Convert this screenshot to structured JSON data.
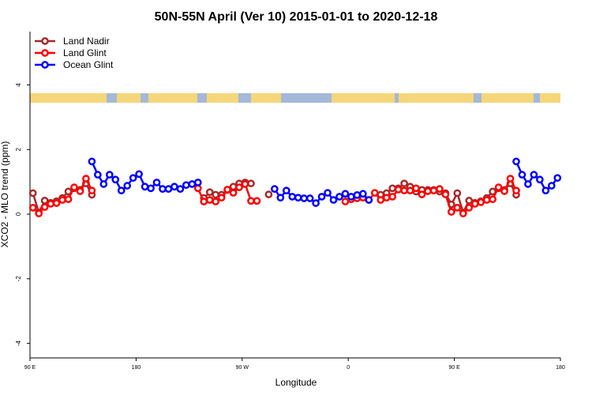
{
  "chart_data": {
    "type": "line",
    "title": "50N-55N April (Ver 10)   2015-01-01 to 2020-12-18",
    "x_label": "Longitude",
    "y_label": "XCO2 - MLO trend (ppm)",
    "xlim": [
      90,
      540
    ],
    "ylim": [
      -4.45,
      5.65
    ],
    "xticks": [
      {
        "value": 90,
        "label": "90 E"
      },
      {
        "value": 180,
        "label": "180"
      },
      {
        "value": 270,
        "label": "90 W"
      },
      {
        "value": 360,
        "label": "0"
      },
      {
        "value": 450,
        "label": "90 E"
      },
      {
        "value": 540,
        "label": "180"
      }
    ],
    "yticks": [
      -4,
      -2,
      0,
      2,
      4
    ],
    "legend": "top-left",
    "x": [
      92.5,
      97.5,
      102.5,
      107.5,
      112.5,
      117.5,
      122.5,
      127.5,
      132.5,
      137.5,
      142.5,
      147.5,
      152.5,
      157.5,
      162.5,
      167.5,
      172.5,
      177.5,
      182.5,
      187.5,
      192.5,
      197.5,
      202.5,
      207.5,
      212.5,
      217.5,
      222.5,
      227.5,
      232.5,
      237.5,
      242.5,
      247.5,
      252.5,
      257.5,
      262.5,
      267.5,
      272.5,
      277.5,
      282.5,
      287.5,
      292.5,
      297.5,
      302.5,
      307.5,
      312.5,
      317.5,
      322.5,
      327.5,
      332.5,
      337.5,
      342.5,
      347.5,
      352.5,
      357.5,
      362.5,
      367.5,
      372.5,
      377.5,
      382.5,
      387.5,
      392.5,
      397.5,
      402.5,
      407.5,
      412.5,
      417.5,
      422.5,
      427.5,
      432.5,
      437.5,
      442.5,
      447.5,
      452.5,
      457.5,
      462.5,
      467.5,
      472.5,
      477.5,
      482.5,
      487.5,
      492.5,
      497.5,
      502.5,
      507.5,
      512.5,
      517.5,
      522.5,
      527.5,
      532.5,
      537.5
    ],
    "series": [
      {
        "name": "Land Nadir",
        "color": "#a52a2a",
        "values": [
          0.65,
          0.05,
          0.42,
          0.35,
          0.4,
          0.5,
          0.7,
          0.8,
          0.75,
          0.95,
          0.6,
          null,
          null,
          null,
          null,
          null,
          null,
          null,
          null,
          null,
          null,
          null,
          null,
          null,
          null,
          null,
          null,
          null,
          null,
          0.5,
          0.68,
          0.6,
          0.6,
          0.75,
          0.85,
          0.95,
          0.98,
          0.95,
          null,
          null,
          0.61,
          null,
          null,
          null,
          null,
          null,
          null,
          null,
          null,
          null,
          null,
          null,
          null,
          null,
          null,
          null,
          null,
          null,
          null,
          0.6,
          0.65,
          0.8,
          0.8,
          0.95,
          0.85,
          0.7,
          0.75,
          0.75,
          0.75,
          0.7,
          0.65,
          0.3,
          0.65,
          0.05,
          0.42,
          0.35,
          0.4,
          0.5,
          0.7,
          0.8,
          0.75,
          0.95,
          0.6,
          null,
          null,
          null,
          null,
          null,
          null,
          null
        ]
      },
      {
        "name": "Land Glint",
        "color": "#ff0000",
        "values": [
          0.2,
          0.02,
          0.22,
          0.32,
          0.34,
          0.44,
          0.46,
          0.83,
          0.71,
          1.1,
          0.73,
          null,
          null,
          null,
          null,
          null,
          null,
          null,
          null,
          null,
          null,
          null,
          null,
          null,
          null,
          null,
          null,
          null,
          0.8,
          0.39,
          0.44,
          0.39,
          0.51,
          0.76,
          0.66,
          0.83,
          0.93,
          0.41,
          0.41,
          null,
          null,
          null,
          null,
          null,
          null,
          null,
          null,
          null,
          null,
          null,
          null,
          null,
          null,
          0.39,
          0.46,
          0.49,
          0.51,
          0.44,
          0.66,
          0.44,
          0.51,
          0.54,
          0.76,
          0.73,
          0.73,
          0.8,
          0.61,
          0.71,
          0.73,
          0.78,
          0.61,
          0.07,
          0.2,
          0.02,
          0.2,
          0.32,
          0.37,
          0.44,
          0.46,
          0.83,
          0.71,
          1.1,
          0.73,
          null,
          null,
          null,
          null,
          null,
          null,
          null
        ]
      },
      {
        "name": "Ocean Glint",
        "color": "#0000ff",
        "values": [
          null,
          null,
          null,
          null,
          null,
          null,
          null,
          null,
          null,
          null,
          1.63,
          1.22,
          0.93,
          1.22,
          1.07,
          0.73,
          0.88,
          1.12,
          1.24,
          0.85,
          0.8,
          0.98,
          0.78,
          0.78,
          0.85,
          0.78,
          0.9,
          0.93,
          0.98,
          null,
          null,
          null,
          null,
          null,
          null,
          null,
          null,
          null,
          null,
          null,
          null,
          0.78,
          0.51,
          0.73,
          0.54,
          0.51,
          0.49,
          0.49,
          0.34,
          0.54,
          0.66,
          0.44,
          0.54,
          0.63,
          0.54,
          0.59,
          0.63,
          0.44,
          null,
          null,
          null,
          null,
          null,
          null,
          null,
          null,
          null,
          null,
          null,
          null,
          null,
          null,
          null,
          null,
          null,
          null,
          null,
          null,
          null,
          null,
          null,
          null,
          1.63,
          1.22,
          0.93,
          1.22,
          1.07,
          0.73,
          0.88,
          1.12
        ]
      }
    ]
  }
}
